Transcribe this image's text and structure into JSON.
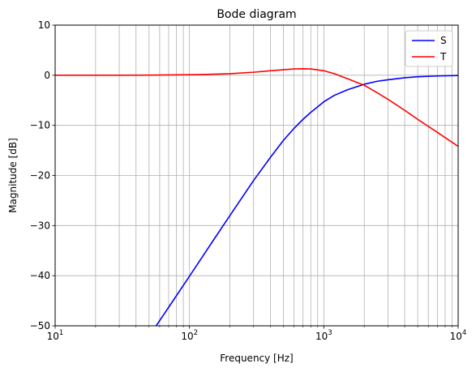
{
  "chart_data": {
    "type": "line",
    "title": "Bode diagram",
    "xlabel": "Frequency [Hz]",
    "ylabel": "Magnitude [dB]",
    "xscale": "log",
    "xlim": [
      10,
      10000
    ],
    "ylim": [
      -50,
      10
    ],
    "grid": true,
    "legend_position": "top-right",
    "y_ticks": [
      10,
      0,
      -10,
      -20,
      -30,
      -40,
      -50
    ],
    "y_tick_labels": [
      "10",
      "0",
      "−10",
      "−20",
      "−30",
      "−40",
      "−50"
    ],
    "x_ticks": [
      10,
      100,
      1000,
      10000
    ],
    "x_tick_labels": [
      {
        "base": "10",
        "exp": "1"
      },
      {
        "base": "10",
        "exp": "2"
      },
      {
        "base": "10",
        "exp": "3"
      },
      {
        "base": "10",
        "exp": "4"
      }
    ],
    "series": [
      {
        "name": "S",
        "color": "#0000ff",
        "x": [
          56.5,
          70,
          100,
          150,
          200,
          300,
          400,
          500,
          600,
          700,
          800,
          1000,
          1200,
          1500,
          2000,
          2500,
          3000,
          4000,
          5000,
          7000,
          10000
        ],
        "y": [
          -50.0,
          -46.3,
          -40.1,
          -33.0,
          -28.0,
          -21.0,
          -16.4,
          -13.0,
          -10.6,
          -8.8,
          -7.4,
          -5.3,
          -4.0,
          -2.9,
          -1.8,
          -1.2,
          -0.9,
          -0.5,
          -0.3,
          -0.15,
          -0.05
        ]
      },
      {
        "name": "T",
        "color": "#ff0000",
        "x": [
          10,
          30,
          50,
          100,
          150,
          200,
          300,
          400,
          500,
          600,
          700,
          800,
          1000,
          1200,
          1500,
          2000,
          2500,
          3000,
          4000,
          5000,
          7000,
          10000
        ],
        "y": [
          0.0,
          0.0,
          0.02,
          0.1,
          0.2,
          0.3,
          0.6,
          0.9,
          1.1,
          1.25,
          1.3,
          1.25,
          0.9,
          0.3,
          -0.7,
          -2.0,
          -3.5,
          -4.8,
          -7.0,
          -8.8,
          -11.4,
          -14.2
        ]
      }
    ]
  }
}
